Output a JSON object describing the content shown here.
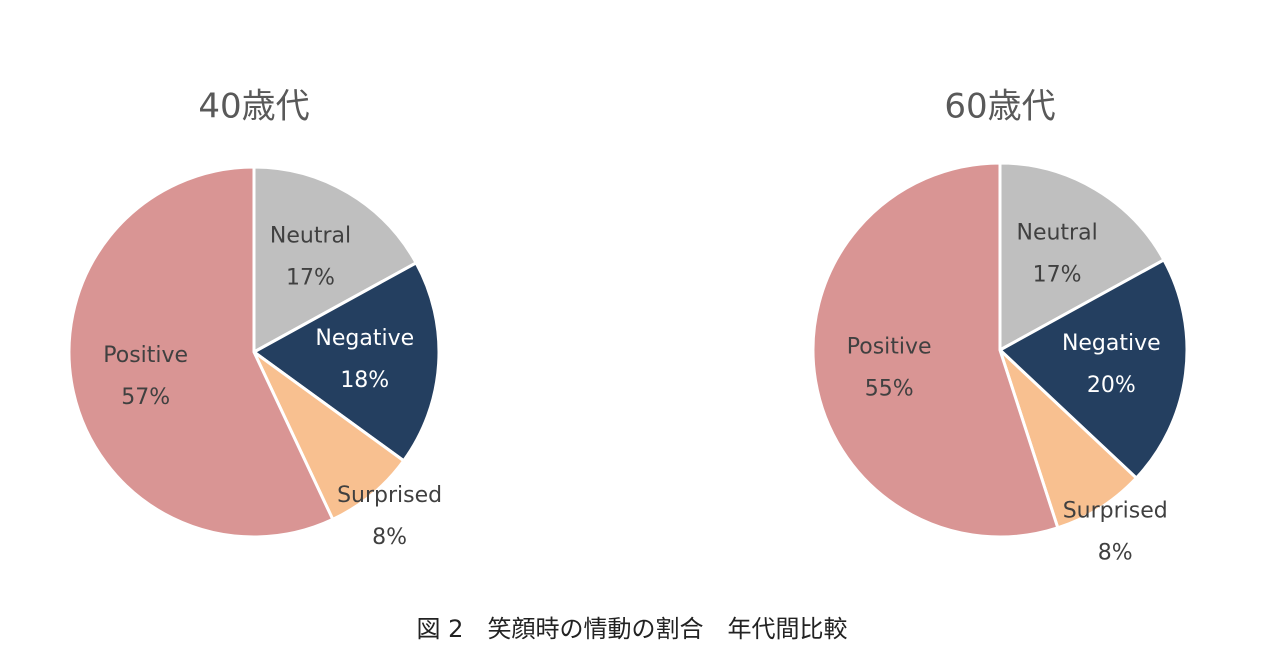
{
  "chart_data": [
    {
      "type": "pie",
      "title": "40歳代",
      "categories": [
        "Neutral",
        "Negative",
        "Surprised",
        "Positive"
      ],
      "values": [
        17,
        18,
        8,
        57
      ],
      "value_labels": [
        "17%",
        "18%",
        "8%",
        "57%"
      ],
      "colors": [
        "#bfbfbf",
        "#243f60",
        "#f8c090",
        "#d99594"
      ]
    },
    {
      "type": "pie",
      "title": "60歳代",
      "categories": [
        "Neutral",
        "Negative",
        "Surprised",
        "Positive"
      ],
      "values": [
        17,
        20,
        8,
        55
      ],
      "value_labels": [
        "17%",
        "20%",
        "8%",
        "55%"
      ],
      "colors": [
        "#bfbfbf",
        "#243f60",
        "#f8c090",
        "#d99594"
      ]
    }
  ],
  "caption": "図 2　笑顔時の情動の割合　年代間比較"
}
